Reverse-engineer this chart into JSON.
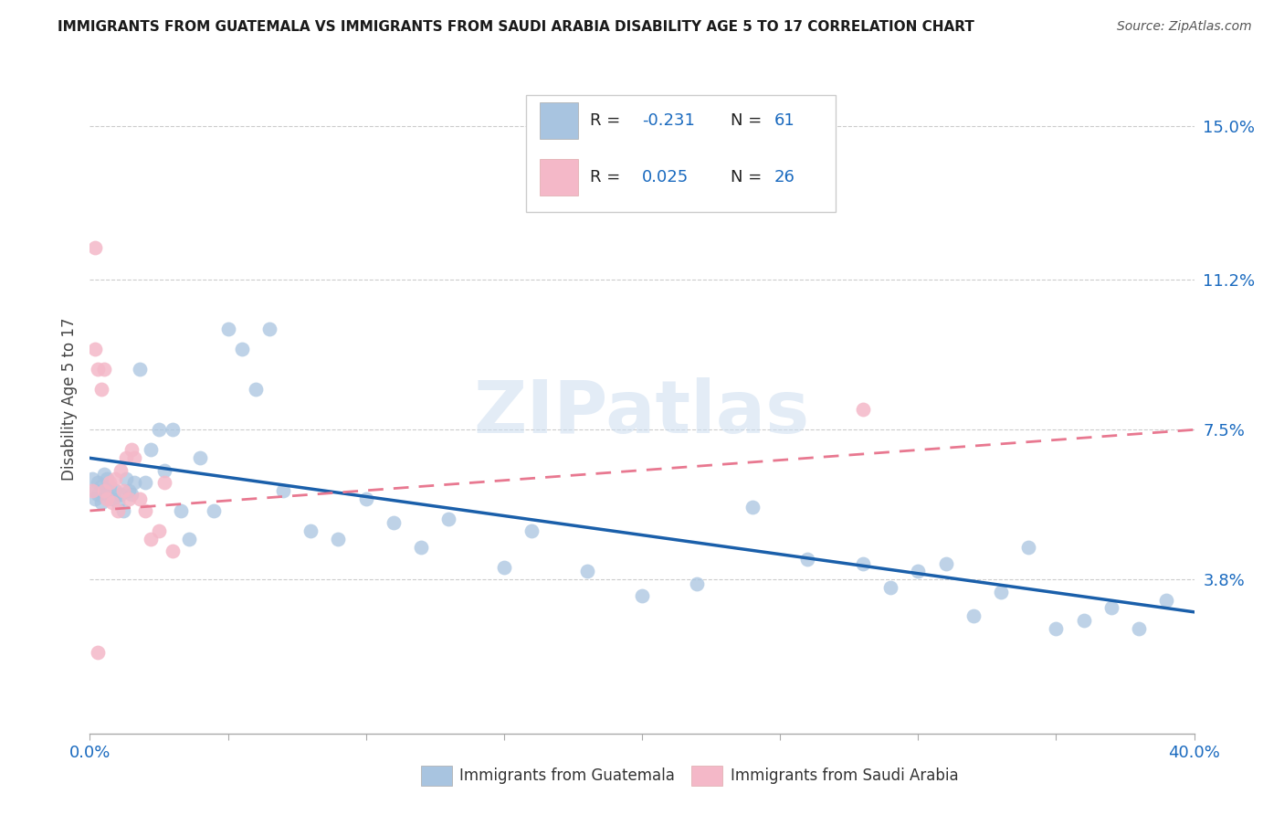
{
  "title": "IMMIGRANTS FROM GUATEMALA VS IMMIGRANTS FROM SAUDI ARABIA DISABILITY AGE 5 TO 17 CORRELATION CHART",
  "source": "Source: ZipAtlas.com",
  "ylabel": "Disability Age 5 to 17",
  "xlim": [
    0.0,
    0.4
  ],
  "ylim": [
    0.0,
    0.165
  ],
  "ytick_positions": [
    0.038,
    0.075,
    0.112,
    0.15
  ],
  "ytick_labels": [
    "3.8%",
    "7.5%",
    "11.2%",
    "15.0%"
  ],
  "R_blue": -0.231,
  "N_blue": 61,
  "R_pink": 0.025,
  "N_pink": 26,
  "blue_color": "#a8c4e0",
  "pink_color": "#f4b8c8",
  "blue_line_color": "#1a5faa",
  "pink_line_color": "#e87890",
  "watermark": "ZIPatlas",
  "blue_line_x": [
    0.0,
    0.4
  ],
  "blue_line_y": [
    0.068,
    0.03
  ],
  "pink_line_x": [
    0.0,
    0.4
  ],
  "pink_line_y": [
    0.055,
    0.075
  ],
  "guatemala_x": [
    0.001,
    0.002,
    0.002,
    0.003,
    0.003,
    0.004,
    0.004,
    0.005,
    0.005,
    0.006,
    0.006,
    0.007,
    0.008,
    0.009,
    0.01,
    0.011,
    0.012,
    0.013,
    0.014,
    0.015,
    0.016,
    0.018,
    0.02,
    0.022,
    0.025,
    0.027,
    0.03,
    0.033,
    0.036,
    0.04,
    0.045,
    0.05,
    0.055,
    0.06,
    0.065,
    0.07,
    0.08,
    0.09,
    0.1,
    0.11,
    0.12,
    0.13,
    0.15,
    0.16,
    0.18,
    0.2,
    0.22,
    0.24,
    0.26,
    0.28,
    0.29,
    0.3,
    0.31,
    0.32,
    0.33,
    0.34,
    0.35,
    0.36,
    0.37,
    0.38,
    0.39
  ],
  "guatemala_y": [
    0.063,
    0.06,
    0.058,
    0.062,
    0.059,
    0.061,
    0.057,
    0.06,
    0.064,
    0.059,
    0.063,
    0.061,
    0.058,
    0.06,
    0.057,
    0.059,
    0.055,
    0.063,
    0.06,
    0.059,
    0.062,
    0.09,
    0.062,
    0.07,
    0.075,
    0.065,
    0.075,
    0.055,
    0.048,
    0.068,
    0.055,
    0.1,
    0.095,
    0.085,
    0.1,
    0.06,
    0.05,
    0.048,
    0.058,
    0.052,
    0.046,
    0.053,
    0.041,
    0.05,
    0.04,
    0.034,
    0.037,
    0.056,
    0.043,
    0.042,
    0.036,
    0.04,
    0.042,
    0.029,
    0.035,
    0.046,
    0.026,
    0.028,
    0.031,
    0.026,
    0.033
  ],
  "saudi_x": [
    0.001,
    0.002,
    0.003,
    0.004,
    0.005,
    0.006,
    0.007,
    0.008,
    0.009,
    0.01,
    0.011,
    0.012,
    0.013,
    0.014,
    0.015,
    0.016,
    0.018,
    0.02,
    0.022,
    0.025,
    0.027,
    0.03,
    0.002,
    0.005,
    0.28,
    0.003
  ],
  "saudi_y": [
    0.06,
    0.12,
    0.09,
    0.085,
    0.06,
    0.058,
    0.062,
    0.057,
    0.063,
    0.055,
    0.065,
    0.06,
    0.068,
    0.058,
    0.07,
    0.068,
    0.058,
    0.055,
    0.048,
    0.05,
    0.062,
    0.045,
    0.095,
    0.09,
    0.08,
    0.02
  ]
}
